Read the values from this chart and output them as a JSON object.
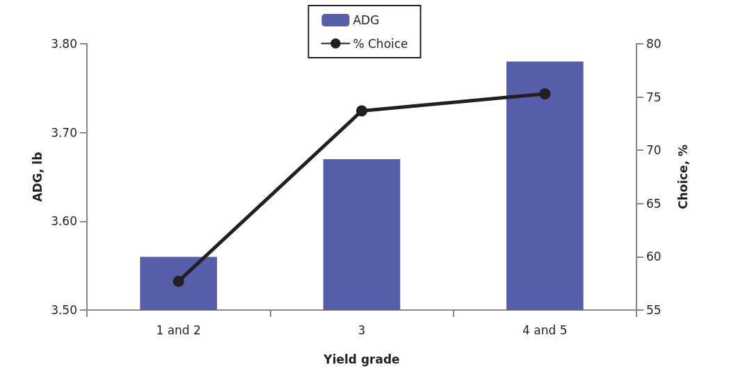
{
  "chart_data": {
    "type": "bar",
    "xlabel": "Yield grade",
    "ylabel": "ADG, lb",
    "y2label": "Choice, %",
    "categories": [
      "1 and 2",
      "3",
      "4 and 5"
    ],
    "series": [
      {
        "name": "ADG",
        "color": "#575ea9",
        "values": [
          3.56,
          3.67,
          3.78
        ]
      },
      {
        "name": "% Choice",
        "type": "line",
        "axis": "y2",
        "color": "#231f20",
        "values": [
          57.7,
          73.7,
          75.3
        ]
      }
    ],
    "ylim": [
      3.5,
      3.8
    ],
    "yticks": [
      {
        "value": 3.5,
        "label": "3.50"
      },
      {
        "value": 3.6,
        "label": "3.60"
      },
      {
        "value": 3.7,
        "label": "3.70"
      },
      {
        "value": 3.8,
        "label": "3.80"
      }
    ],
    "y2lim": [
      55,
      80
    ],
    "y2ticks": [
      55,
      60,
      65,
      70,
      75,
      80
    ],
    "grid": false,
    "legend": "top",
    "marker": "circle",
    "line_style": "solid"
  }
}
